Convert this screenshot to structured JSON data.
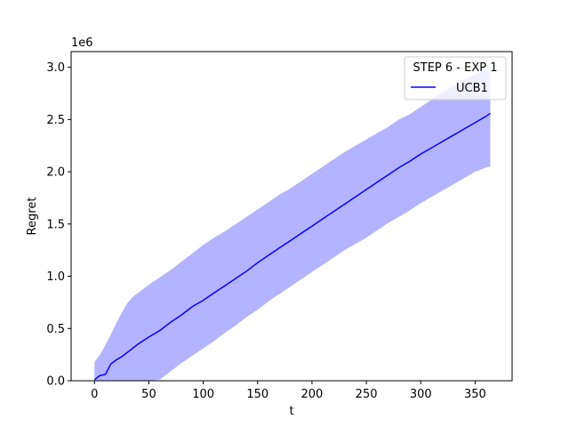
{
  "chart_data": {
    "type": "line",
    "title": "",
    "xlabel": "t",
    "ylabel": "Regret",
    "y_offset_label": "1e6",
    "xlim": [
      -21.5,
      384
    ],
    "ylim": [
      0,
      3.15
    ],
    "x_ticks": [
      0,
      50,
      100,
      150,
      200,
      250,
      300,
      350
    ],
    "y_ticks": [
      0.0,
      0.5,
      1.0,
      1.5,
      2.0,
      2.5,
      3.0
    ],
    "x_tick_labels": [
      "0",
      "50",
      "100",
      "150",
      "200",
      "250",
      "300",
      "350"
    ],
    "y_tick_labels": [
      "0.0",
      "0.5",
      "1.0",
      "1.5",
      "2.0",
      "2.5",
      "3.0"
    ],
    "grid": false,
    "legend": {
      "title": "STEP 6 - EXP 1",
      "placement": "upper right",
      "entries": [
        "UCB1"
      ]
    },
    "series": [
      {
        "name": "UCB1",
        "color": "#0000ff",
        "x": [
          0,
          5,
          10,
          15,
          20,
          25,
          30,
          35,
          40,
          50,
          60,
          70,
          80,
          90,
          100,
          110,
          120,
          130,
          140,
          150,
          160,
          170,
          180,
          190,
          200,
          210,
          220,
          230,
          240,
          250,
          260,
          270,
          280,
          290,
          300,
          310,
          320,
          330,
          340,
          350,
          360,
          364
        ],
        "y": [
          0.01,
          0.05,
          0.06,
          0.16,
          0.2,
          0.23,
          0.27,
          0.31,
          0.35,
          0.42,
          0.48,
          0.56,
          0.63,
          0.71,
          0.77,
          0.84,
          0.91,
          0.98,
          1.05,
          1.13,
          1.2,
          1.27,
          1.34,
          1.41,
          1.48,
          1.55,
          1.62,
          1.69,
          1.76,
          1.83,
          1.9,
          1.97,
          2.04,
          2.1,
          2.17,
          2.23,
          2.29,
          2.35,
          2.41,
          2.47,
          2.53,
          2.56
        ],
        "band_color": "#b3b3ff",
        "band_upper": [
          0.18,
          0.25,
          0.34,
          0.44,
          0.55,
          0.65,
          0.74,
          0.8,
          0.84,
          0.92,
          0.99,
          1.06,
          1.14,
          1.22,
          1.3,
          1.37,
          1.43,
          1.5,
          1.57,
          1.64,
          1.71,
          1.78,
          1.84,
          1.91,
          1.98,
          2.05,
          2.12,
          2.19,
          2.25,
          2.31,
          2.37,
          2.43,
          2.5,
          2.55,
          2.62,
          2.69,
          2.76,
          2.82,
          2.88,
          2.93,
          2.97,
          2.99
        ],
        "band_lower": [
          0.0,
          0.0,
          0.0,
          0.0,
          0.0,
          0.0,
          0.0,
          0.0,
          0.0,
          0.0,
          0.01,
          0.09,
          0.17,
          0.24,
          0.31,
          0.38,
          0.46,
          0.53,
          0.61,
          0.68,
          0.76,
          0.83,
          0.9,
          0.97,
          1.04,
          1.11,
          1.18,
          1.25,
          1.31,
          1.37,
          1.44,
          1.51,
          1.57,
          1.63,
          1.7,
          1.76,
          1.82,
          1.88,
          1.94,
          2.0,
          2.04,
          2.05
        ]
      }
    ]
  }
}
